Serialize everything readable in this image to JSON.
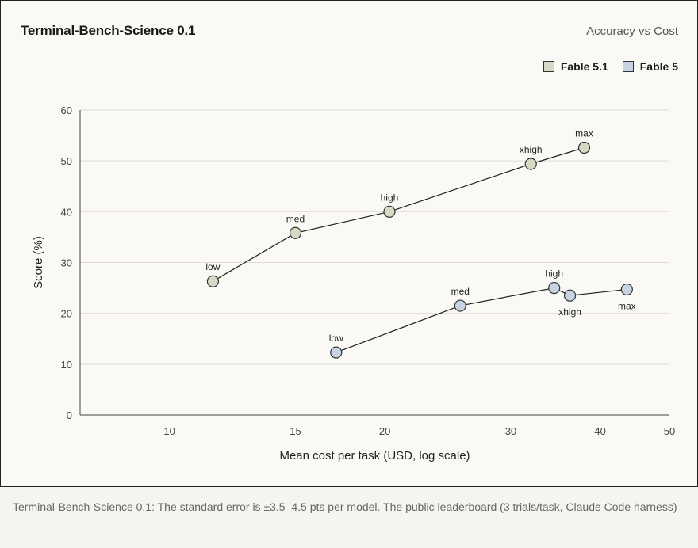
{
  "chart_data": {
    "type": "scatter",
    "title": "Terminal-Bench-Science 0.1",
    "subtitle": "Accuracy vs Cost",
    "xlabel": "Mean cost per task (USD, log scale)",
    "ylabel": "Score (%)",
    "x_scale": "log",
    "xlim": [
      7.5,
      50
    ],
    "ylim": [
      0,
      60
    ],
    "x_ticks": [
      10,
      15,
      20,
      30,
      40,
      50
    ],
    "y_ticks": [
      0,
      10,
      20,
      30,
      40,
      50,
      60
    ],
    "grid": "horizontal",
    "legend_position": "top-right",
    "series": [
      {
        "name": "Fable 5.1",
        "color": "#d6d9c4",
        "points": [
          {
            "label": "low",
            "x": 11.5,
            "y": 26.3
          },
          {
            "label": "med",
            "x": 15.0,
            "y": 35.8
          },
          {
            "label": "high",
            "x": 20.3,
            "y": 40.0
          },
          {
            "label": "xhigh",
            "x": 32.0,
            "y": 49.4
          },
          {
            "label": "max",
            "x": 38.0,
            "y": 52.6
          }
        ]
      },
      {
        "name": "Fable 5",
        "color": "#c8d3e2",
        "points": [
          {
            "label": "low",
            "x": 17.1,
            "y": 12.3
          },
          {
            "label": "med",
            "x": 25.5,
            "y": 21.5
          },
          {
            "label": "high",
            "x": 34.5,
            "y": 25.0
          },
          {
            "label": "xhigh",
            "x": 36.3,
            "y": 23.5
          },
          {
            "label": "max",
            "x": 43.6,
            "y": 24.7
          }
        ]
      }
    ]
  },
  "footer": {
    "note": "Terminal-Bench-Science 0.1: The standard error is ±3.5–4.5 pts per model. The public leaderboard (3 trials/task, Claude Code harness)"
  }
}
